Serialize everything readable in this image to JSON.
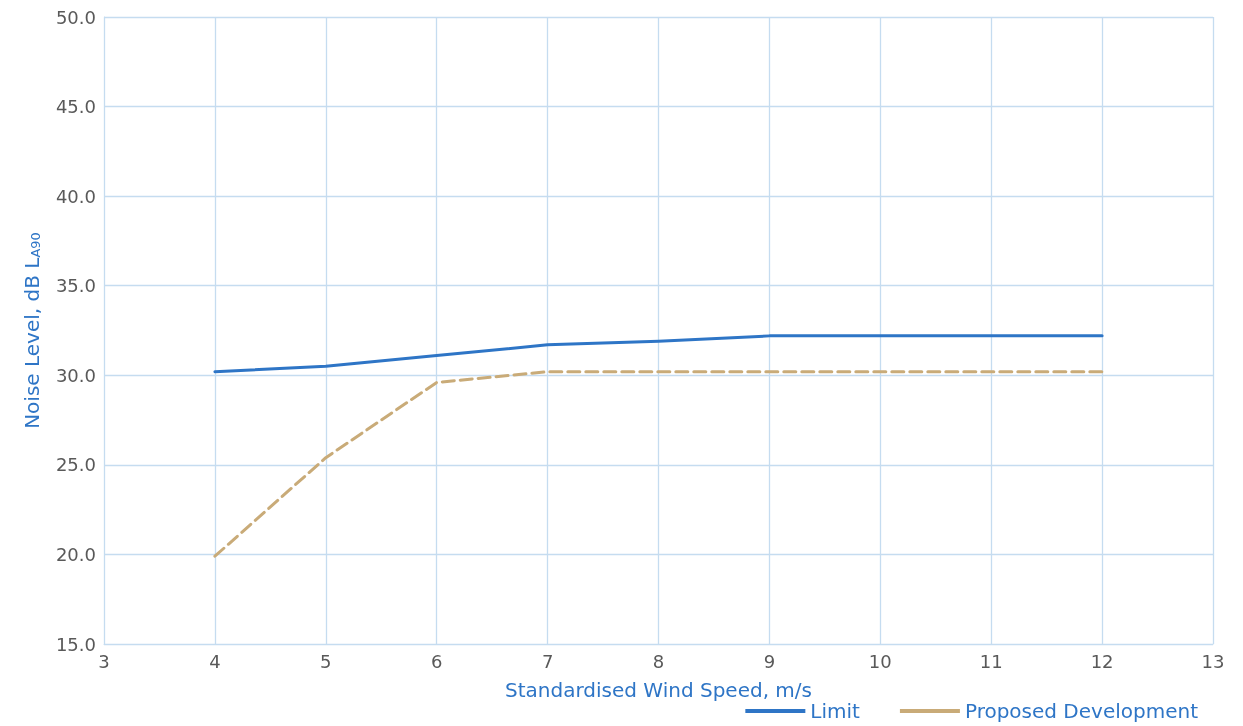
{
  "chart_data": {
    "type": "line",
    "xlabel": "Standardised Wind Speed, m/s",
    "ylabel": "Noise Level, dB L$_{A90}$",
    "x": [
      4,
      5,
      6,
      7,
      8,
      9,
      10,
      11,
      12
    ],
    "series": [
      {
        "name": "Limit",
        "color": "#2e75c6",
        "line_style": "solid",
        "values": [
          30.2,
          30.5,
          31.1,
          31.7,
          31.9,
          32.2,
          32.2,
          32.2,
          32.2
        ]
      },
      {
        "name": "Proposed Development",
        "color": "#c9ab78",
        "line_style": "dashed",
        "values": [
          19.9,
          25.4,
          29.6,
          30.2,
          30.2,
          30.2,
          30.2,
          30.2,
          30.2
        ]
      }
    ],
    "xlim": [
      3,
      13
    ],
    "xticks": [
      3,
      4,
      5,
      6,
      7,
      8,
      9,
      10,
      11,
      12,
      13
    ],
    "ylim": [
      15,
      50
    ],
    "yticks": [
      {
        "value": 15,
        "label": "15.0"
      },
      {
        "value": 20,
        "label": "20.0"
      },
      {
        "value": 25,
        "label": "25.0"
      },
      {
        "value": 30,
        "label": "30.0"
      },
      {
        "value": 35,
        "label": "35.0"
      },
      {
        "value": 40,
        "label": "40.0"
      },
      {
        "value": 45,
        "label": "45.0"
      },
      {
        "value": 50,
        "label": "50.0"
      }
    ],
    "grid": true,
    "legend": "bottom right",
    "marker": "none"
  }
}
